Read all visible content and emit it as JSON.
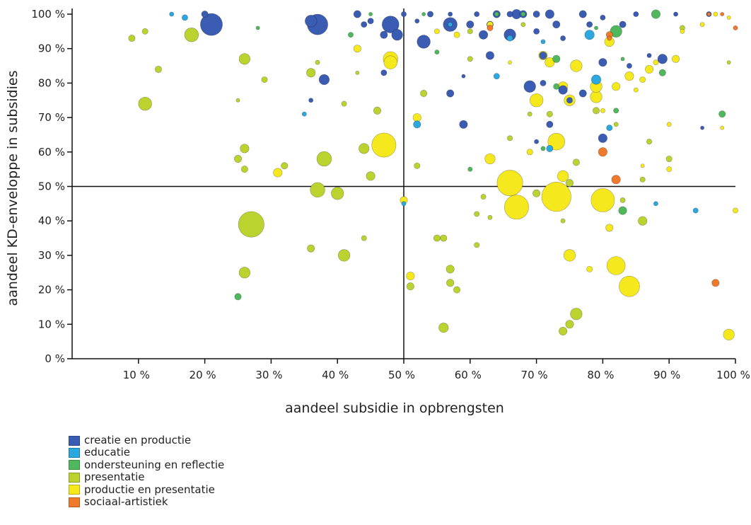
{
  "chart_data": {
    "type": "scatter",
    "title": "",
    "xlabel": "aandeel subsidie in opbrengsten",
    "ylabel": "aandeel KD-enveloppe in subsidies",
    "xlim": [
      0.0,
      1.0
    ],
    "ylim": [
      0.0,
      1.0
    ],
    "x_ticks": [
      "10 %",
      "20 %",
      "30 %",
      "40 %",
      "50 %",
      "60 %",
      "70 %",
      "80 %",
      "90 %",
      "100 %"
    ],
    "y_ticks": [
      "0 %",
      "10 %",
      "20 %",
      "30 %",
      "40 %",
      "50 %",
      "60 %",
      "70 %",
      "80 %",
      "90 %",
      "100 %"
    ],
    "reference_lines": {
      "x": 0.5,
      "y": 0.5
    },
    "grid": false,
    "legend_position": "bottom-left",
    "encoding": "bubble area",
    "series": [
      {
        "name": "creatie en productie",
        "color": "#3b5cb3",
        "points": [
          [
            0.21,
            0.97,
            3
          ],
          [
            0.37,
            0.97,
            2.8
          ],
          [
            0.36,
            0.98,
            1.6
          ],
          [
            0.48,
            0.97,
            2.3
          ],
          [
            0.49,
            0.94,
            1.5
          ],
          [
            0.47,
            0.94,
            1
          ],
          [
            0.53,
            0.92,
            1.8
          ],
          [
            0.57,
            0.97,
            1.9
          ],
          [
            0.66,
            0.94,
            1.6
          ],
          [
            0.67,
            1.0,
            1.3
          ],
          [
            0.64,
            1.0,
            1.0
          ],
          [
            0.62,
            0.94,
            1.2
          ],
          [
            0.6,
            0.97,
            1
          ],
          [
            0.72,
            1.0,
            1.2
          ],
          [
            0.73,
            0.97,
            1.0
          ],
          [
            0.38,
            0.81,
            1.4
          ],
          [
            0.63,
            0.88,
            1.1
          ],
          [
            0.69,
            0.79,
            1.6
          ],
          [
            0.74,
            0.78,
            1.2
          ],
          [
            0.8,
            0.86,
            1.1
          ],
          [
            0.8,
            0.64,
            1.2
          ],
          [
            0.89,
            0.87,
            1.3
          ],
          [
            0.59,
            0.68,
            1.1
          ],
          [
            0.57,
            0.77,
            1.0
          ],
          [
            0.43,
            1.0,
            1
          ],
          [
            0.44,
            0.97,
            0.8
          ],
          [
            0.45,
            0.98,
            0.8
          ],
          [
            0.47,
            0.83,
            0.8
          ],
          [
            0.5,
            1.0,
            0.7
          ],
          [
            0.54,
            1.0,
            0.8
          ],
          [
            0.52,
            0.98,
            0.6
          ],
          [
            0.57,
            1.0,
            0.6
          ],
          [
            0.61,
            1.0,
            0.7
          ],
          [
            0.63,
            0.97,
            0.9
          ],
          [
            0.66,
            1.0,
            0.8
          ],
          [
            0.68,
            1.0,
            1
          ],
          [
            0.7,
            1.0,
            0.9
          ],
          [
            0.7,
            0.95,
            0.8
          ],
          [
            0.71,
            0.88,
            1
          ],
          [
            0.71,
            0.8,
            0.8
          ],
          [
            0.72,
            0.68,
            0.9
          ],
          [
            0.77,
            1.0,
            1
          ],
          [
            0.78,
            0.97,
            0.8
          ],
          [
            0.8,
            0.99,
            0.7
          ],
          [
            0.83,
            0.97,
            0.9
          ],
          [
            0.85,
            1.0,
            0.7
          ],
          [
            0.75,
            0.75,
            0.8
          ],
          [
            0.77,
            0.77,
            1
          ],
          [
            0.84,
            0.85,
            0.7
          ],
          [
            0.91,
            1.0,
            0.6
          ],
          [
            0.96,
            1.0,
            0.7
          ],
          [
            0.95,
            0.67,
            0.5
          ],
          [
            0.36,
            0.75,
            0.6
          ],
          [
            0.59,
            0.82,
            0.5
          ],
          [
            0.74,
            0.93,
            0.7
          ],
          [
            0.87,
            0.88,
            0.6
          ],
          [
            0.7,
            0.63,
            0.6
          ],
          [
            0.2,
            1.0,
            0.9
          ]
        ]
      },
      {
        "name": "educatie",
        "color": "#2aa8df",
        "points": [
          [
            0.78,
            0.94,
            1.3
          ],
          [
            0.79,
            0.81,
            1.3
          ],
          [
            0.52,
            0.68,
            1.0
          ],
          [
            0.72,
            0.61,
            0.9
          ],
          [
            0.66,
            0.93,
            0.8
          ],
          [
            0.64,
            0.82,
            0.8
          ],
          [
            0.17,
            0.99,
            0.8
          ],
          [
            0.94,
            0.43,
            0.7
          ],
          [
            0.5,
            0.45,
            0.6
          ],
          [
            0.81,
            0.67,
            0.8
          ],
          [
            0.35,
            0.71,
            0.6
          ],
          [
            0.71,
            0.92,
            0.6
          ],
          [
            0.88,
            0.45,
            0.6
          ],
          [
            0.57,
            0.97,
            0.6
          ],
          [
            0.15,
            1.0,
            0.6
          ]
        ]
      },
      {
        "name": "ondersteuning en reflectie",
        "color": "#4fb85c",
        "points": [
          [
            0.82,
            0.95,
            1.6
          ],
          [
            0.88,
            1.0,
            1.2
          ],
          [
            0.83,
            0.43,
            1.1
          ],
          [
            0.73,
            0.87,
            1.0
          ],
          [
            0.89,
            0.83,
            0.9
          ],
          [
            0.25,
            0.18,
            0.9
          ],
          [
            0.73,
            0.79,
            0.8
          ],
          [
            0.98,
            0.71,
            0.9
          ],
          [
            0.82,
            0.72,
            0.7
          ],
          [
            0.42,
            0.94,
            0.7
          ],
          [
            0.6,
            0.55,
            0.6
          ],
          [
            0.68,
            1.0,
            0.6
          ],
          [
            0.64,
            1.0,
            0.6
          ],
          [
            0.55,
            0.89,
            0.6
          ],
          [
            0.83,
            0.87,
            0.5
          ],
          [
            0.71,
            0.61,
            0.6
          ],
          [
            0.28,
            0.96,
            0.5
          ],
          [
            0.45,
            1.0,
            0.5
          ],
          [
            0.53,
            1.0,
            0.5
          ],
          [
            0.79,
            0.96,
            0.5
          ]
        ]
      },
      {
        "name": "presentatie",
        "color": "#bcd22f",
        "points": [
          [
            0.27,
            0.39,
            3.5
          ],
          [
            0.38,
            0.58,
            2.0
          ],
          [
            0.37,
            0.49,
            2.0
          ],
          [
            0.4,
            0.48,
            1.7
          ],
          [
            0.41,
            0.3,
            1.6
          ],
          [
            0.44,
            0.61,
            1.4
          ],
          [
            0.45,
            0.53,
            1.2
          ],
          [
            0.18,
            0.94,
            1.9
          ],
          [
            0.11,
            0.74,
            1.8
          ],
          [
            0.26,
            0.87,
            1.5
          ],
          [
            0.36,
            0.83,
            1.2
          ],
          [
            0.26,
            0.25,
            1.5
          ],
          [
            0.26,
            0.61,
            1.2
          ],
          [
            0.25,
            0.58,
            1.0
          ],
          [
            0.26,
            0.55,
            0.9
          ],
          [
            0.36,
            0.32,
            1.0
          ],
          [
            0.56,
            0.09,
            1.3
          ],
          [
            0.57,
            0.26,
            1.1
          ],
          [
            0.57,
            0.22,
            1.0
          ],
          [
            0.58,
            0.2,
            0.9
          ],
          [
            0.55,
            0.35,
            0.9
          ],
          [
            0.76,
            0.13,
            1.6
          ],
          [
            0.74,
            0.08,
            1.1
          ],
          [
            0.75,
            0.1,
            1.1
          ],
          [
            0.86,
            0.4,
            1.2
          ],
          [
            0.76,
            0.57,
            0.9
          ],
          [
            0.79,
            0.72,
            0.9
          ],
          [
            0.72,
            0.71,
            0.8
          ],
          [
            0.7,
            0.48,
            1.0
          ],
          [
            0.75,
            0.51,
            1.0
          ],
          [
            0.83,
            0.46,
            0.7
          ],
          [
            0.9,
            0.58,
            0.8
          ],
          [
            0.51,
            0.21,
            1.0
          ],
          [
            0.53,
            0.77,
            0.9
          ],
          [
            0.56,
            0.35,
            0.9
          ],
          [
            0.62,
            0.47,
            0.7
          ],
          [
            0.61,
            0.42,
            0.7
          ],
          [
            0.61,
            0.33,
            0.7
          ],
          [
            0.32,
            0.56,
            0.9
          ],
          [
            0.46,
            0.72,
            1.0
          ],
          [
            0.13,
            0.84,
            0.9
          ],
          [
            0.09,
            0.93,
            0.9
          ],
          [
            0.11,
            0.95,
            0.8
          ],
          [
            0.29,
            0.81,
            0.8
          ],
          [
            0.41,
            0.74,
            0.7
          ],
          [
            0.44,
            0.35,
            0.7
          ],
          [
            0.25,
            0.75,
            0.5
          ],
          [
            0.86,
            0.52,
            0.7
          ],
          [
            0.87,
            0.63,
            0.7
          ],
          [
            0.66,
            0.64,
            0.7
          ],
          [
            0.74,
            0.4,
            0.6
          ],
          [
            0.6,
            0.95,
            0.7
          ],
          [
            0.68,
            0.97,
            0.6
          ],
          [
            0.82,
            0.68,
            0.6
          ],
          [
            0.43,
            0.83,
            0.5
          ],
          [
            0.37,
            0.86,
            0.6
          ],
          [
            0.52,
            0.56,
            0.8
          ],
          [
            0.63,
            0.41,
            0.6
          ],
          [
            0.92,
            0.96,
            0.7
          ],
          [
            0.99,
            0.86,
            0.5
          ],
          [
            0.6,
            0.87,
            0.7
          ],
          [
            0.69,
            0.71,
            0.6
          ]
        ]
      },
      {
        "name": "productie en presentatie",
        "color": "#f5e81c",
        "points": [
          [
            0.73,
            0.47,
            4.0
          ],
          [
            0.66,
            0.51,
            3.5
          ],
          [
            0.67,
            0.44,
            3.3
          ],
          [
            0.8,
            0.46,
            3.2
          ],
          [
            0.47,
            0.62,
            3.3
          ],
          [
            0.84,
            0.21,
            2.8
          ],
          [
            0.82,
            0.27,
            2.5
          ],
          [
            0.73,
            0.63,
            2.3
          ],
          [
            0.48,
            0.87,
            2.0
          ],
          [
            0.48,
            0.86,
            1.8
          ],
          [
            0.7,
            0.75,
            1.8
          ],
          [
            0.75,
            0.75,
            1.5
          ],
          [
            0.76,
            0.85,
            1.6
          ],
          [
            0.79,
            0.76,
            1.6
          ],
          [
            0.79,
            0.79,
            1.6
          ],
          [
            0.74,
            0.53,
            1.5
          ],
          [
            0.75,
            0.3,
            1.6
          ],
          [
            0.99,
            0.07,
            1.5
          ],
          [
            0.63,
            0.58,
            1.4
          ],
          [
            0.74,
            0.79,
            1.3
          ],
          [
            0.72,
            0.86,
            1.3
          ],
          [
            0.71,
            0.88,
            1.2
          ],
          [
            0.81,
            0.92,
            1.3
          ],
          [
            0.84,
            0.82,
            1.2
          ],
          [
            0.87,
            0.84,
            1.1
          ],
          [
            0.82,
            0.79,
            1.1
          ],
          [
            0.31,
            0.54,
            1.2
          ],
          [
            0.51,
            0.24,
            1.1
          ],
          [
            0.52,
            0.7,
            1.1
          ],
          [
            0.81,
            0.38,
            1.0
          ],
          [
            0.91,
            0.87,
            1.0
          ],
          [
            0.43,
            0.9,
            1.0
          ],
          [
            0.5,
            0.46,
            1.0
          ],
          [
            0.58,
            0.94,
            0.8
          ],
          [
            0.63,
            0.97,
            0.8
          ],
          [
            0.69,
            0.6,
            0.8
          ],
          [
            0.86,
            0.81,
            0.8
          ],
          [
            0.88,
            0.86,
            0.7
          ],
          [
            0.78,
            0.26,
            0.8
          ],
          [
            0.9,
            0.55,
            0.7
          ],
          [
            0.85,
            0.78,
            0.6
          ],
          [
            0.55,
            0.95,
            0.7
          ],
          [
            1.0,
            0.43,
            0.7
          ],
          [
            0.95,
            0.97,
            0.6
          ],
          [
            0.9,
            0.68,
            0.6
          ],
          [
            0.98,
            0.67,
            0.5
          ],
          [
            0.86,
            0.56,
            0.5
          ],
          [
            0.66,
            0.86,
            0.5
          ],
          [
            0.92,
            0.95,
            0.6
          ],
          [
            0.8,
            0.72,
            0.6
          ],
          [
            0.97,
            1.0,
            0.6
          ],
          [
            0.99,
            0.99,
            0.5
          ]
        ]
      },
      {
        "name": "sociaal-artistiek",
        "color": "#ef7a2b",
        "points": [
          [
            0.8,
            0.6,
            1.2
          ],
          [
            0.82,
            0.52,
            1.2
          ],
          [
            0.97,
            0.22,
            1.0
          ],
          [
            0.81,
            0.94,
            0.9
          ],
          [
            0.63,
            0.96,
            0.8
          ],
          [
            0.81,
            0.93,
            0.6
          ],
          [
            1.0,
            0.96,
            0.6
          ],
          [
            0.96,
            1.0,
            0.5
          ],
          [
            0.98,
            1.0,
            0.5
          ]
        ]
      }
    ]
  }
}
